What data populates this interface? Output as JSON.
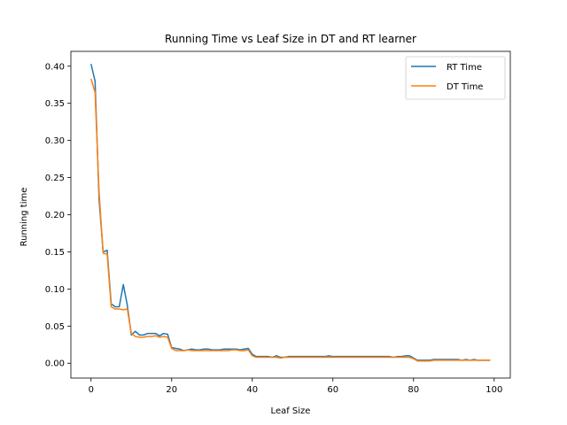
{
  "chart_data": {
    "type": "line",
    "title": "Running Time vs Leaf Size in DT and RT learner",
    "xlabel": "Leaf Size",
    "ylabel": "Running time",
    "xlim": [
      -5,
      104
    ],
    "ylim": [
      -0.02,
      0.42
    ],
    "xticks": [
      0,
      20,
      40,
      60,
      80,
      100
    ],
    "xtick_labels": [
      "0",
      "20",
      "40",
      "60",
      "80",
      "100"
    ],
    "yticks": [
      0.0,
      0.05,
      0.1,
      0.15,
      0.2,
      0.25,
      0.3,
      0.35,
      0.4
    ],
    "ytick_labels": [
      "0.00",
      "0.05",
      "0.10",
      "0.15",
      "0.20",
      "0.25",
      "0.30",
      "0.35",
      "0.40"
    ],
    "grid": false,
    "legend_position": "top-right",
    "x": [
      0,
      1,
      2,
      3,
      4,
      5,
      6,
      7,
      8,
      9,
      10,
      11,
      12,
      13,
      14,
      15,
      16,
      17,
      18,
      19,
      20,
      21,
      22,
      23,
      24,
      25,
      26,
      27,
      28,
      29,
      30,
      31,
      32,
      33,
      34,
      35,
      36,
      37,
      38,
      39,
      40,
      41,
      42,
      43,
      44,
      45,
      46,
      47,
      48,
      49,
      50,
      51,
      52,
      53,
      54,
      55,
      56,
      57,
      58,
      59,
      60,
      61,
      62,
      63,
      64,
      65,
      66,
      67,
      68,
      69,
      70,
      71,
      72,
      73,
      74,
      75,
      76,
      77,
      78,
      79,
      80,
      81,
      82,
      83,
      84,
      85,
      86,
      87,
      88,
      89,
      90,
      91,
      92,
      93,
      94,
      95,
      96,
      97,
      98,
      99
    ],
    "series": [
      {
        "name": "RT Time",
        "color": "#1f77b4",
        "values": [
          0.403,
          0.38,
          0.22,
          0.15,
          0.152,
          0.08,
          0.076,
          0.076,
          0.106,
          0.078,
          0.038,
          0.043,
          0.038,
          0.038,
          0.04,
          0.04,
          0.04,
          0.037,
          0.04,
          0.039,
          0.021,
          0.02,
          0.019,
          0.017,
          0.018,
          0.019,
          0.018,
          0.018,
          0.019,
          0.019,
          0.018,
          0.018,
          0.018,
          0.019,
          0.019,
          0.019,
          0.019,
          0.018,
          0.019,
          0.02,
          0.012,
          0.009,
          0.009,
          0.009,
          0.009,
          0.008,
          0.01,
          0.008,
          0.008,
          0.009,
          0.009,
          0.009,
          0.009,
          0.009,
          0.009,
          0.009,
          0.009,
          0.009,
          0.009,
          0.01,
          0.009,
          0.009,
          0.009,
          0.009,
          0.009,
          0.009,
          0.009,
          0.009,
          0.009,
          0.009,
          0.009,
          0.009,
          0.009,
          0.009,
          0.009,
          0.008,
          0.009,
          0.009,
          0.01,
          0.01,
          0.007,
          0.004,
          0.004,
          0.004,
          0.004,
          0.005,
          0.005,
          0.005,
          0.005,
          0.005,
          0.005,
          0.005,
          0.004,
          0.005,
          0.004,
          0.005,
          0.004,
          0.004,
          0.004,
          0.004
        ]
      },
      {
        "name": "DT Time",
        "color": "#ff7f0e",
        "values": [
          0.383,
          0.365,
          0.23,
          0.148,
          0.147,
          0.076,
          0.073,
          0.073,
          0.072,
          0.073,
          0.04,
          0.036,
          0.035,
          0.035,
          0.036,
          0.036,
          0.037,
          0.035,
          0.036,
          0.035,
          0.02,
          0.017,
          0.017,
          0.017,
          0.018,
          0.017,
          0.017,
          0.017,
          0.017,
          0.017,
          0.017,
          0.017,
          0.017,
          0.017,
          0.017,
          0.018,
          0.018,
          0.017,
          0.017,
          0.018,
          0.01,
          0.008,
          0.008,
          0.008,
          0.008,
          0.008,
          0.008,
          0.007,
          0.008,
          0.008,
          0.008,
          0.008,
          0.008,
          0.008,
          0.008,
          0.008,
          0.008,
          0.008,
          0.008,
          0.008,
          0.008,
          0.008,
          0.008,
          0.008,
          0.008,
          0.008,
          0.008,
          0.008,
          0.008,
          0.008,
          0.008,
          0.008,
          0.008,
          0.008,
          0.008,
          0.008,
          0.008,
          0.008,
          0.008,
          0.008,
          0.006,
          0.003,
          0.003,
          0.003,
          0.003,
          0.004,
          0.004,
          0.004,
          0.004,
          0.004,
          0.004,
          0.004,
          0.004,
          0.004,
          0.004,
          0.004,
          0.004,
          0.004,
          0.004,
          0.004
        ]
      }
    ]
  }
}
